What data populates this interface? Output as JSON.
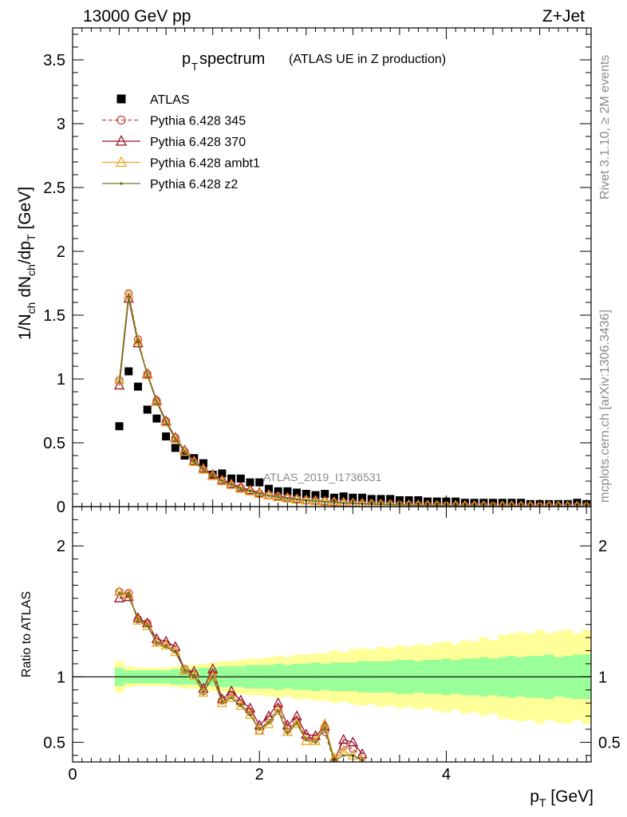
{
  "header": {
    "left": "13000 GeV pp",
    "right": "Z+Jet",
    "title_main": "p",
    "title_sub": "T",
    "title_rest": " spectrum",
    "title_small": "(ATLAS UE in Z production)",
    "watermark": "ATLAS_2019_I1736531",
    "side_top": "Rivet 3.1.10, ≥ 2M events",
    "side_bottom": "mcplots.cern.ch [arXiv:1306.3436]"
  },
  "chart_data": [
    {
      "type": "scatter",
      "panel": "main",
      "ylabel": "1/N_ch dN_ch/dp_T [GeV]",
      "xlim": [
        0,
        5.55
      ],
      "ylim": [
        0,
        3.75
      ],
      "yticks": [
        "0",
        "0.5",
        "1",
        "1.5",
        "2",
        "2.5",
        "3",
        "3.5"
      ],
      "grid": false,
      "legend_position": "top-left",
      "x": [
        0.5,
        0.6,
        0.7,
        0.8,
        0.9,
        1.0,
        1.1,
        1.2,
        1.3,
        1.4,
        1.5,
        1.6,
        1.7,
        1.8,
        1.9,
        2.0,
        2.1,
        2.2,
        2.3,
        2.4,
        2.5,
        2.6,
        2.7,
        2.8,
        2.9,
        3.0,
        3.1,
        3.2,
        3.3,
        3.4,
        3.5,
        3.6,
        3.7,
        3.8,
        3.9,
        4.0,
        4.1,
        4.2,
        4.3,
        4.4,
        4.5,
        4.6,
        4.7,
        4.8,
        4.9,
        5.0,
        5.1,
        5.2,
        5.3,
        5.4,
        5.5
      ],
      "series": [
        {
          "name": "ATLAS",
          "color": "#000000",
          "marker": "square",
          "values": [
            0.63,
            1.06,
            0.94,
            0.76,
            0.69,
            0.55,
            0.46,
            0.4,
            0.38,
            0.34,
            0.25,
            0.26,
            0.22,
            0.22,
            0.19,
            0.19,
            0.14,
            0.12,
            0.12,
            0.11,
            0.1,
            0.09,
            0.1,
            0.07,
            0.08,
            0.07,
            0.07,
            0.06,
            0.06,
            0.06,
            0.05,
            0.05,
            0.05,
            0.04,
            0.04,
            0.04,
            0.04,
            0.03,
            0.03,
            0.03,
            0.03,
            0.03,
            0.03,
            0.03,
            0.02,
            0.02,
            0.02,
            0.02,
            0.02,
            0.03,
            0.02
          ]
        },
        {
          "name": "Pythia 6.428 345",
          "color": "#c0494a",
          "marker": "circle",
          "dash": "5,3",
          "values": [
            0.99,
            1.67,
            1.31,
            1.04,
            0.83,
            0.67,
            0.54,
            0.43,
            0.35,
            0.29,
            0.24,
            0.2,
            0.17,
            0.15,
            0.12,
            0.1,
            0.09,
            0.08,
            0.07,
            0.06,
            0.05,
            0.045,
            0.04,
            0.035,
            0.03,
            0.027,
            0.023,
            0.02,
            0.018,
            0.016,
            0.014,
            0.012,
            0.011,
            0.01,
            0.009,
            0.008,
            0.007,
            0.006,
            0.006,
            0.005,
            0.005,
            0.004,
            0.004,
            0.004,
            0.003,
            0.003,
            0.003,
            0.003,
            0.002,
            0.002,
            0.002
          ]
        },
        {
          "name": "Pythia 6.428 370",
          "color": "#9a1428",
          "marker": "triangle",
          "values": [
            0.95,
            1.63,
            1.28,
            1.04,
            0.83,
            0.67,
            0.54,
            0.44,
            0.36,
            0.3,
            0.25,
            0.21,
            0.18,
            0.15,
            0.13,
            0.11,
            0.09,
            0.08,
            0.07,
            0.06,
            0.05,
            0.046,
            0.04,
            0.035,
            0.031,
            0.027,
            0.024,
            0.021,
            0.018,
            0.016,
            0.014,
            0.012,
            0.011,
            0.01,
            0.009,
            0.008,
            0.007,
            0.006,
            0.006,
            0.005,
            0.005,
            0.004,
            0.004,
            0.004,
            0.003,
            0.003,
            0.003,
            0.003,
            0.002,
            0.002,
            0.002
          ]
        },
        {
          "name": "Pythia 6.428 ambt1",
          "color": "#f0a81c",
          "marker": "triangle",
          "values": [
            0.99,
            1.66,
            1.3,
            1.03,
            0.82,
            0.66,
            0.53,
            0.43,
            0.35,
            0.29,
            0.24,
            0.2,
            0.17,
            0.14,
            0.12,
            0.1,
            0.09,
            0.075,
            0.065,
            0.055,
            0.05,
            0.043,
            0.038,
            0.033,
            0.029,
            0.025,
            0.022,
            0.019,
            0.017,
            0.015,
            0.013,
            0.012,
            0.01,
            0.009,
            0.008,
            0.007,
            0.007,
            0.006,
            0.005,
            0.005,
            0.004,
            0.004,
            0.004,
            0.003,
            0.003,
            0.003,
            0.003,
            0.002,
            0.002,
            0.002,
            0.002
          ]
        },
        {
          "name": "Pythia 6.428 z2",
          "color": "#6b7d1e",
          "marker": "dot",
          "values": [
            0.98,
            1.65,
            1.29,
            1.03,
            0.82,
            0.66,
            0.53,
            0.43,
            0.35,
            0.29,
            0.24,
            0.2,
            0.17,
            0.14,
            0.12,
            0.1,
            0.085,
            0.073,
            0.063,
            0.055,
            0.048,
            0.042,
            0.037,
            0.032,
            0.028,
            0.025,
            0.022,
            0.019,
            0.017,
            0.015,
            0.013,
            0.011,
            0.01,
            0.009,
            0.008,
            0.007,
            0.006,
            0.006,
            0.005,
            0.005,
            0.004,
            0.004,
            0.003,
            0.003,
            0.003,
            0.003,
            0.002,
            0.002,
            0.002,
            0.002,
            0.002
          ]
        }
      ]
    },
    {
      "type": "line",
      "panel": "ratio",
      "ylabel": "Ratio to ATLAS",
      "xlabel": "p_T [GeV]",
      "xlim": [
        0,
        5.55
      ],
      "ylim": [
        0.35,
        2.3
      ],
      "yticks": [
        "0.5",
        "1",
        "2"
      ],
      "xticks": [
        "0",
        "2",
        "4"
      ],
      "band_x": [
        0.45,
        0.55,
        0.65,
        0.75,
        0.85,
        0.95,
        1.05,
        1.15,
        1.25,
        1.35,
        1.45,
        1.55,
        1.65,
        1.75,
        1.85,
        1.95,
        2.05,
        2.15,
        2.25,
        2.35,
        2.45,
        2.55,
        2.65,
        2.75,
        2.85,
        2.95,
        3.05,
        3.15,
        3.25,
        3.35,
        3.45,
        3.55,
        3.65,
        3.75,
        3.85,
        3.95,
        4.05,
        4.15,
        4.25,
        4.35,
        4.45,
        4.55,
        4.65,
        4.75,
        4.85,
        4.95,
        5.05,
        5.15,
        5.25,
        5.35,
        5.45,
        5.55
      ],
      "band_inner": [
        0.07,
        0.05,
        0.05,
        0.05,
        0.05,
        0.05,
        0.06,
        0.06,
        0.06,
        0.07,
        0.07,
        0.08,
        0.08,
        0.08,
        0.09,
        0.09,
        0.09,
        0.1,
        0.09,
        0.1,
        0.1,
        0.11,
        0.1,
        0.11,
        0.11,
        0.11,
        0.12,
        0.12,
        0.12,
        0.12,
        0.13,
        0.13,
        0.12,
        0.13,
        0.13,
        0.14,
        0.13,
        0.14,
        0.14,
        0.15,
        0.14,
        0.15,
        0.16,
        0.15,
        0.16,
        0.16,
        0.17,
        0.15,
        0.16,
        0.17,
        0.17
      ],
      "band_outer": [
        0.12,
        0.08,
        0.07,
        0.07,
        0.07,
        0.07,
        0.08,
        0.09,
        0.09,
        0.1,
        0.11,
        0.12,
        0.12,
        0.13,
        0.14,
        0.14,
        0.15,
        0.16,
        0.15,
        0.17,
        0.17,
        0.18,
        0.18,
        0.2,
        0.19,
        0.21,
        0.22,
        0.21,
        0.23,
        0.22,
        0.24,
        0.23,
        0.25,
        0.24,
        0.26,
        0.27,
        0.25,
        0.28,
        0.27,
        0.3,
        0.28,
        0.32,
        0.33,
        0.34,
        0.33,
        0.36,
        0.33,
        0.35,
        0.36,
        0.33,
        0.36
      ],
      "x": [
        0.5,
        0.6,
        0.7,
        0.8,
        0.9,
        1.0,
        1.1,
        1.2,
        1.3,
        1.4,
        1.5,
        1.6,
        1.7,
        1.8,
        1.9,
        2.0,
        2.1,
        2.2,
        2.3,
        2.4,
        2.5,
        2.6,
        2.7,
        2.8,
        2.9,
        3.0,
        3.1
      ],
      "series": [
        {
          "name": "Pythia 6.428 345",
          "color": "#c0494a",
          "marker": "circle",
          "dash": "5,3",
          "values": [
            1.65,
            1.64,
            1.44,
            1.41,
            1.27,
            1.25,
            1.21,
            1.06,
            1.02,
            0.89,
            1.02,
            0.82,
            0.86,
            0.8,
            0.73,
            0.59,
            0.67,
            0.76,
            0.6,
            0.66,
            0.54,
            0.53,
            0.58,
            0.35,
            0.47,
            0.45,
            0.39
          ]
        },
        {
          "name": "Pythia 6.428 370",
          "color": "#9a1428",
          "marker": "triangle",
          "values": [
            1.6,
            1.61,
            1.45,
            1.41,
            1.29,
            1.27,
            1.23,
            1.05,
            1.04,
            0.91,
            1.06,
            0.83,
            0.89,
            0.82,
            0.76,
            0.63,
            0.7,
            0.8,
            0.63,
            0.7,
            0.56,
            0.55,
            0.62,
            0.36,
            0.52,
            0.5,
            0.41
          ]
        },
        {
          "name": "Pythia 6.428 ambt1",
          "color": "#f0a81c",
          "marker": "triangle",
          "values": [
            1.65,
            1.63,
            1.43,
            1.39,
            1.26,
            1.24,
            1.19,
            1.05,
            1.01,
            0.88,
            1.0,
            0.8,
            0.84,
            0.78,
            0.71,
            0.59,
            0.64,
            0.74,
            0.58,
            0.64,
            0.51,
            0.51,
            0.64,
            0.38,
            0.43,
            0.4,
            0.36
          ]
        },
        {
          "name": "Pythia 6.428 z2",
          "color": "#6b7d1e",
          "marker": "dot",
          "values": [
            1.64,
            1.63,
            1.43,
            1.39,
            1.26,
            1.23,
            1.19,
            1.05,
            1.01,
            0.88,
            1.0,
            0.81,
            0.84,
            0.78,
            0.71,
            0.6,
            0.65,
            0.74,
            0.57,
            0.65,
            0.52,
            0.5,
            0.61,
            0.36,
            0.4,
            0.4,
            0.36
          ]
        }
      ]
    }
  ]
}
